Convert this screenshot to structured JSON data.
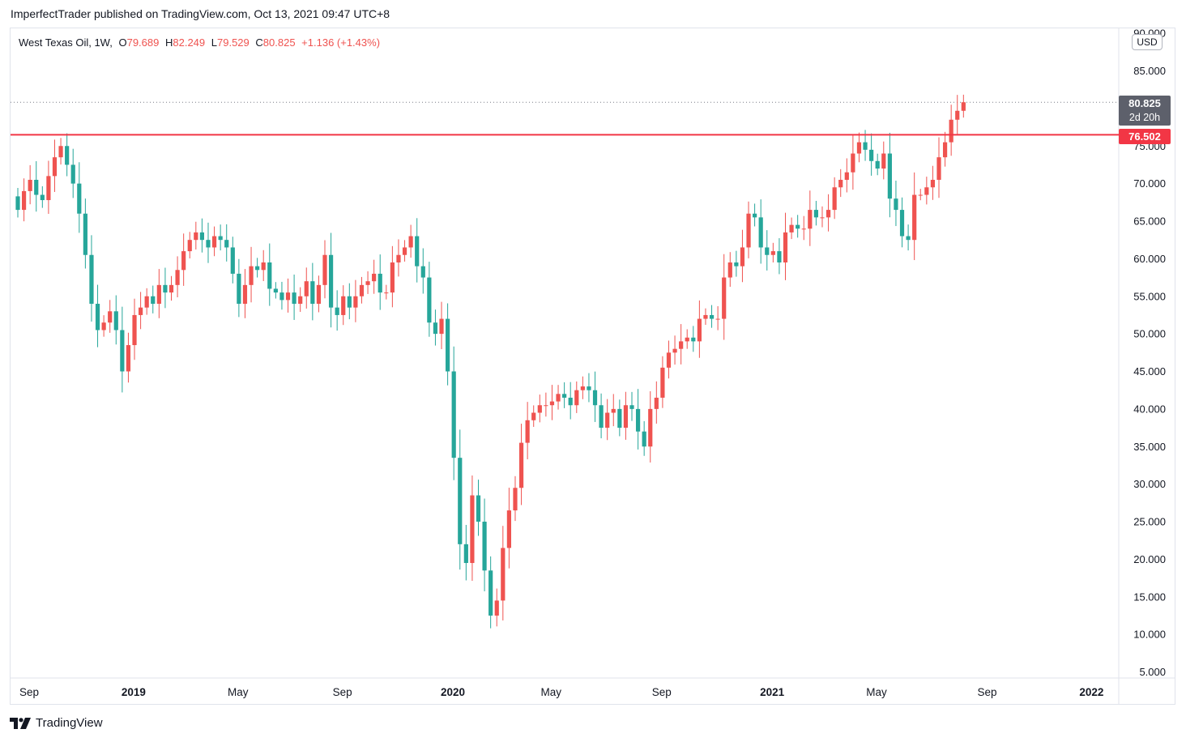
{
  "header": {
    "text": "ImperfectTrader published on TradingView.com, Oct 13, 2021 09:47 UTC+8"
  },
  "legend": {
    "symbol": "West Texas Oil, 1W,",
    "o_label": "O",
    "o": "79.689",
    "h_label": "H",
    "h": "82.249",
    "l_label": "L",
    "l": "79.529",
    "c_label": "C",
    "c": "80.825",
    "change": "+1.136 (+1.43%)"
  },
  "currency": "USD",
  "price_badge": {
    "price": "80.825",
    "countdown": "2d 20h"
  },
  "level_badge": {
    "price": "76.502"
  },
  "footer": {
    "brand": "TradingView",
    "logo_icon": "tradingview-logo-icon"
  },
  "colors": {
    "up": "#ef5350",
    "down": "#26a69a",
    "level": "#f23645",
    "grid": "#e0e3eb",
    "badge": "#5d606b"
  },
  "chart_data": {
    "type": "candlestick",
    "title": "West Texas Oil",
    "timeframe": "1W",
    "ylim": [
      5,
      90
    ],
    "y_ticks": [
      "5.000",
      "10.000",
      "15.000",
      "20.000",
      "25.000",
      "30.000",
      "35.000",
      "40.000",
      "45.000",
      "50.000",
      "55.000",
      "60.000",
      "65.000",
      "70.000",
      "75.000",
      "80.000",
      "85.000",
      "90.000"
    ],
    "x_ticks": [
      {
        "label": "Sep",
        "week": 0,
        "bold": false
      },
      {
        "label": "2019",
        "week": 17,
        "bold": true
      },
      {
        "label": "May",
        "week": 34,
        "bold": false
      },
      {
        "label": "Sep",
        "week": 51,
        "bold": false
      },
      {
        "label": "2020",
        "week": 69,
        "bold": true
      },
      {
        "label": "May",
        "week": 85,
        "bold": false
      },
      {
        "label": "Sep",
        "week": 103,
        "bold": false
      },
      {
        "label": "2021",
        "week": 121,
        "bold": true
      },
      {
        "label": "May",
        "week": 138,
        "bold": false
      },
      {
        "label": "Sep",
        "week": 156,
        "bold": false
      },
      {
        "label": "2022",
        "week": 173,
        "bold": true
      }
    ],
    "horizontal_level": 76.502,
    "last_price": 80.825,
    "closes": [
      66.5,
      69.0,
      70.5,
      68.5,
      67.8,
      71.0,
      73.5,
      75.0,
      72.5,
      70.0,
      66.0,
      60.5,
      54.0,
      50.5,
      51.5,
      53.0,
      50.5,
      45.0,
      48.5,
      52.5,
      53.5,
      55.0,
      54.0,
      56.5,
      55.5,
      56.5,
      58.5,
      61.0,
      62.5,
      63.5,
      62.5,
      61.5,
      63.0,
      62.5,
      61.5,
      58.0,
      54.0,
      56.5,
      59.0,
      58.5,
      59.5,
      56.0,
      55.5,
      54.5,
      55.5,
      54.0,
      55.0,
      57.0,
      54.0,
      56.5,
      60.5,
      53.5,
      52.5,
      55.0,
      53.5,
      55.0,
      56.5,
      57.0,
      58.0,
      55.5,
      55.5,
      59.5,
      60.5,
      61.5,
      63.0,
      59.0,
      57.5,
      51.5,
      50.0,
      52.0,
      45.0,
      33.5,
      22.0,
      19.5,
      28.5,
      25.0,
      18.5,
      12.5,
      14.5,
      21.5,
      26.5,
      29.5,
      35.5,
      38.5,
      39.5,
      40.5,
      40.5,
      41.0,
      42.0,
      41.5,
      40.5,
      42.5,
      43.0,
      42.5,
      40.5,
      37.5,
      39.5,
      40.0,
      37.5,
      40.5,
      40.0,
      37.0,
      35.0,
      40.0,
      41.5,
      45.5,
      47.5,
      48.0,
      49.0,
      49.5,
      49.0,
      52.0,
      52.5,
      52.0,
      52.0,
      57.5,
      59.5,
      59.0,
      61.5,
      66.0,
      65.5,
      61.5,
      60.5,
      61.0,
      59.5,
      63.5,
      64.5,
      64.0,
      64.0,
      66.5,
      65.5,
      65.5,
      66.5,
      69.5,
      70.5,
      71.5,
      74.0,
      75.5,
      74.5,
      73.0,
      72.0,
      74.0,
      68.0,
      66.5,
      63.0,
      62.5,
      68.5,
      68.5,
      69.5,
      70.5,
      73.5,
      75.5,
      78.5,
      79.689,
      80.825
    ]
  }
}
